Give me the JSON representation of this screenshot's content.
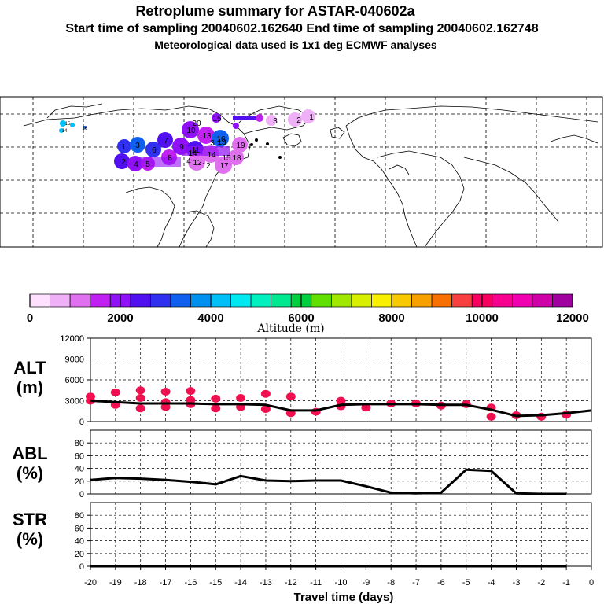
{
  "titles": {
    "line1": "Retroplume summary for ASTAR-040602a",
    "line2": "Start time of sampling 20040602.162640     End time of sampling 20040602.162748",
    "line3": "Meteorological data used is 1x1 deg ECMWF analyses"
  },
  "map": {
    "labels_west": [
      "15",
      "14",
      "16"
    ],
    "plume_labels": [
      "1",
      "2",
      "3",
      "4",
      "5",
      "6",
      "7",
      "8",
      "9",
      "10",
      "11",
      "12",
      "13",
      "14",
      "15",
      "16",
      "17",
      "18",
      "19",
      "20",
      "3",
      "2",
      "1",
      "4",
      "3",
      "12",
      "13",
      "15",
      "14"
    ]
  },
  "colorbar": {
    "label": "Altitude (m)",
    "ticks": [
      "0",
      "2000",
      "4000",
      "6000",
      "8000",
      "10000",
      "12000"
    ],
    "colors": [
      "#ffe0ff",
      "#f0b0f8",
      "#e070f0",
      "#c020f0",
      "#9010f8",
      "#5010f0",
      "#3030f0",
      "#1060f0",
      "#0090f0",
      "#00c0f8",
      "#00e8f0",
      "#00f0c0",
      "#00e890",
      "#00d040",
      "#60e000",
      "#a0e800",
      "#d8f000",
      "#f8f000",
      "#f8c800",
      "#f8a000",
      "#f87000",
      "#f84040",
      "#f80060",
      "#f80090",
      "#f000b0",
      "#d000a8",
      "#a000a0"
    ]
  },
  "chart_data": [
    {
      "type": "line",
      "name": "ALT",
      "title_lines": [
        "ALT",
        "(m)"
      ],
      "x": [
        -20,
        -19,
        -18,
        -17,
        -16,
        -15,
        -14,
        -13,
        -12,
        -11,
        -10,
        -9,
        -8,
        -7,
        -6,
        -5,
        -4,
        -3,
        -2,
        -1,
        0
      ],
      "values": [
        3000,
        2800,
        2600,
        2600,
        2600,
        2500,
        2500,
        2400,
        1600,
        1600,
        2400,
        2500,
        2500,
        2500,
        2400,
        2400,
        1700,
        800,
        900,
        1200,
        1600
      ],
      "ylim": [
        0,
        12000
      ],
      "yticks": [
        "0",
        "3000",
        "6000",
        "9000",
        "12000"
      ],
      "scatter_x": [
        -20,
        -20,
        -19,
        -19,
        -18,
        -18,
        -18,
        -17,
        -17,
        -17,
        -16,
        -16,
        -16,
        -15,
        -15,
        -14,
        -14,
        -13,
        -13,
        -12,
        -12,
        -11,
        -10,
        -10,
        -9,
        -8,
        -7,
        -6,
        -5,
        -4,
        -4,
        -3,
        -2,
        -1
      ],
      "scatter_y": [
        3000,
        3600,
        2400,
        4200,
        1900,
        3400,
        4500,
        2100,
        2800,
        4300,
        2500,
        3100,
        4400,
        1900,
        3300,
        2100,
        3400,
        1800,
        4000,
        1200,
        3600,
        1400,
        2200,
        3000,
        2000,
        2600,
        2600,
        2300,
        2500,
        700,
        2000,
        900,
        700,
        1000
      ]
    },
    {
      "type": "line",
      "name": "ABL",
      "title_lines": [
        "ABL",
        "(%)"
      ],
      "x": [
        -20,
        -19,
        -18,
        -17,
        -16,
        -15,
        -14,
        -13,
        -12,
        -11,
        -10,
        -9,
        -8,
        -7,
        -6,
        -5,
        -4,
        -3,
        -2,
        -1
      ],
      "values": [
        22,
        25,
        24,
        22,
        19,
        15,
        28,
        21,
        20,
        21,
        21,
        12,
        2,
        1,
        2,
        38,
        36,
        1,
        0,
        0
      ],
      "ylim": [
        0,
        100
      ],
      "yticks": [
        "0",
        "20",
        "40",
        "60",
        "80"
      ]
    },
    {
      "type": "line",
      "name": "STR",
      "title_lines": [
        "STR",
        "(%)"
      ],
      "x": [
        -20,
        -19,
        -18,
        -17,
        -16,
        -15,
        -14,
        -13,
        -12,
        -11,
        -10,
        -9,
        -8,
        -7,
        -6,
        -5,
        -4,
        -3,
        -2,
        -1
      ],
      "values": [
        0,
        0,
        0,
        0,
        0,
        0,
        0,
        0,
        0,
        0,
        0,
        0,
        0,
        0,
        0,
        0,
        0,
        0,
        0,
        0
      ],
      "ylim": [
        0,
        100
      ],
      "yticks": [
        "0",
        "20",
        "40",
        "60",
        "80"
      ]
    }
  ],
  "xaxis": {
    "label": "Travel time (days)",
    "ticks": [
      "-20",
      "-19",
      "-18",
      "-17",
      "-16",
      "-15",
      "-14",
      "-13",
      "-12",
      "-11",
      "-10",
      "-9",
      "-8",
      "-7",
      "-6",
      "-5",
      "-4",
      "-3",
      "-2",
      "-1",
      "0"
    ]
  }
}
